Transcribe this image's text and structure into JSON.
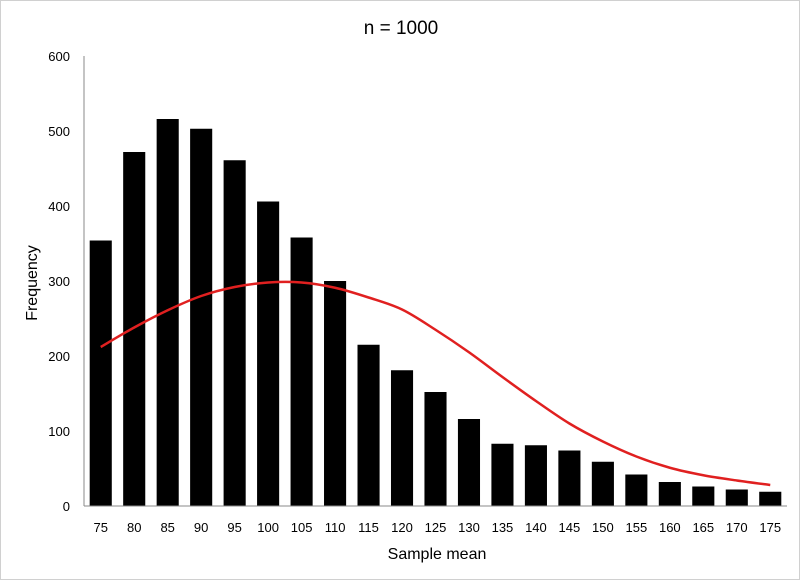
{
  "chart_data": {
    "type": "bar",
    "title": "n = 1000",
    "xlabel": "Sample mean",
    "ylabel": "Frequency",
    "ylim": [
      0,
      600
    ],
    "yticks": [
      "0",
      "100",
      "200",
      "300",
      "400",
      "500",
      "600"
    ],
    "categories": [
      "75",
      "80",
      "85",
      "90",
      "95",
      "100",
      "105",
      "110",
      "115",
      "120",
      "125",
      "130",
      "135",
      "140",
      "145",
      "150",
      "155",
      "160",
      "165",
      "170",
      "175"
    ],
    "grid": false,
    "legend": "none",
    "series": [
      {
        "type": "bar",
        "color": "#000000",
        "values": [
          354,
          472,
          516,
          503,
          461,
          406,
          358,
          300,
          215,
          181,
          152,
          116,
          83,
          81,
          74,
          59,
          42,
          32,
          26,
          22,
          19
        ]
      },
      {
        "type": "line",
        "color": "#e02020",
        "values": [
          212,
          238,
          261,
          280,
          292,
          298,
          298,
          291,
          278,
          262,
          235,
          205,
          172,
          140,
          110,
          86,
          66,
          51,
          41,
          34,
          28
        ]
      }
    ]
  }
}
